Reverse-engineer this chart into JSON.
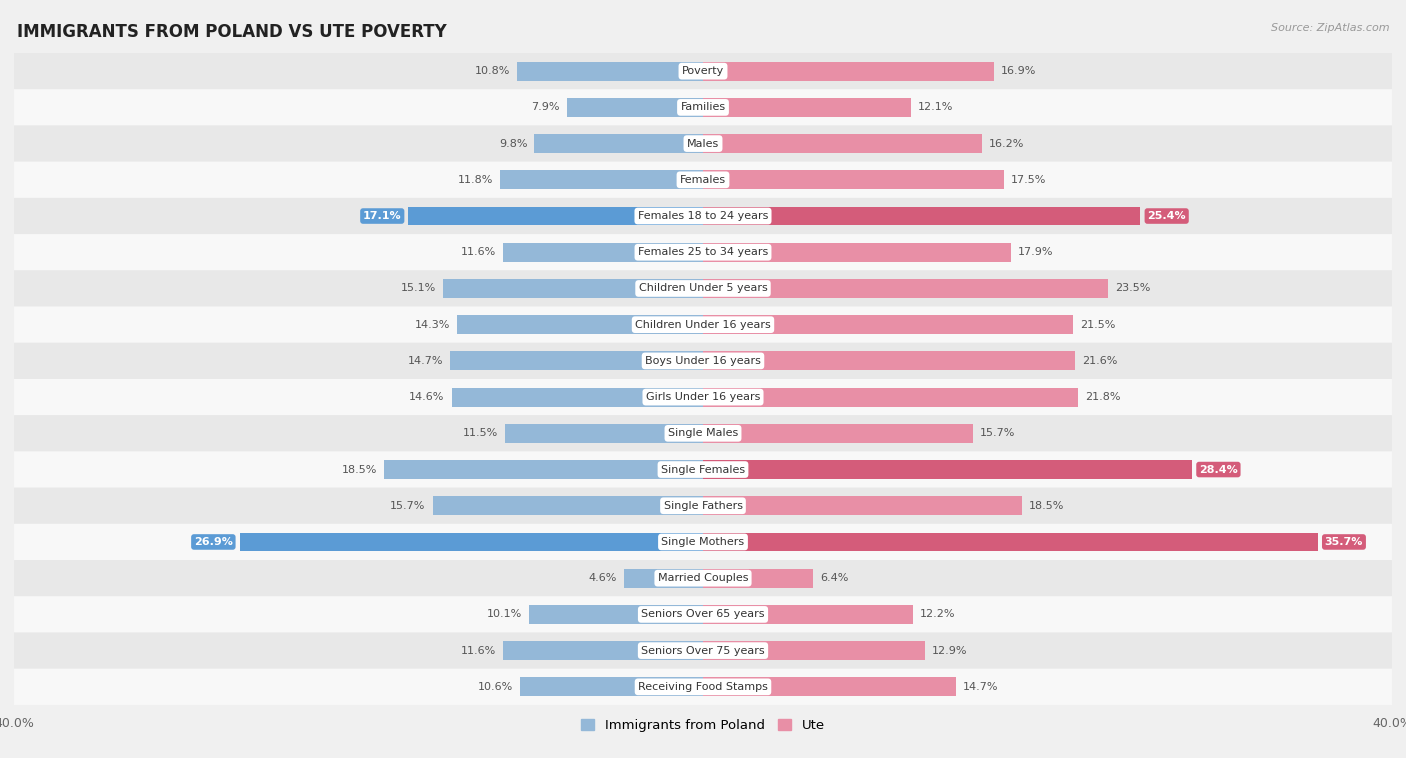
{
  "title": "IMMIGRANTS FROM POLAND VS UTE POVERTY",
  "source": "Source: ZipAtlas.com",
  "categories": [
    "Poverty",
    "Families",
    "Males",
    "Females",
    "Females 18 to 24 years",
    "Females 25 to 34 years",
    "Children Under 5 years",
    "Children Under 16 years",
    "Boys Under 16 years",
    "Girls Under 16 years",
    "Single Males",
    "Single Females",
    "Single Fathers",
    "Single Mothers",
    "Married Couples",
    "Seniors Over 65 years",
    "Seniors Over 75 years",
    "Receiving Food Stamps"
  ],
  "poland_values": [
    10.8,
    7.9,
    9.8,
    11.8,
    17.1,
    11.6,
    15.1,
    14.3,
    14.7,
    14.6,
    11.5,
    18.5,
    15.7,
    26.9,
    4.6,
    10.1,
    11.6,
    10.6
  ],
  "ute_values": [
    16.9,
    12.1,
    16.2,
    17.5,
    25.4,
    17.9,
    23.5,
    21.5,
    21.6,
    21.8,
    15.7,
    28.4,
    18.5,
    35.7,
    6.4,
    12.2,
    12.9,
    14.7
  ],
  "poland_color": "#94b8d8",
  "ute_color": "#e88fa6",
  "highlight_poland": [
    4,
    13
  ],
  "highlight_ute": [
    4,
    11,
    13
  ],
  "highlight_poland_color": "#5b9bd5",
  "highlight_ute_color": "#d45c7a",
  "xlim": 40.0,
  "bar_height": 0.52,
  "bg_color": "#f0f0f0",
  "row_odd_color": "#e8e8e8",
  "row_even_color": "#f8f8f8",
  "legend_poland": "Immigrants from Poland",
  "legend_ute": "Ute",
  "label_color": "#555555",
  "center_label_bg": "#ffffff",
  "center_label_color": "#333333"
}
